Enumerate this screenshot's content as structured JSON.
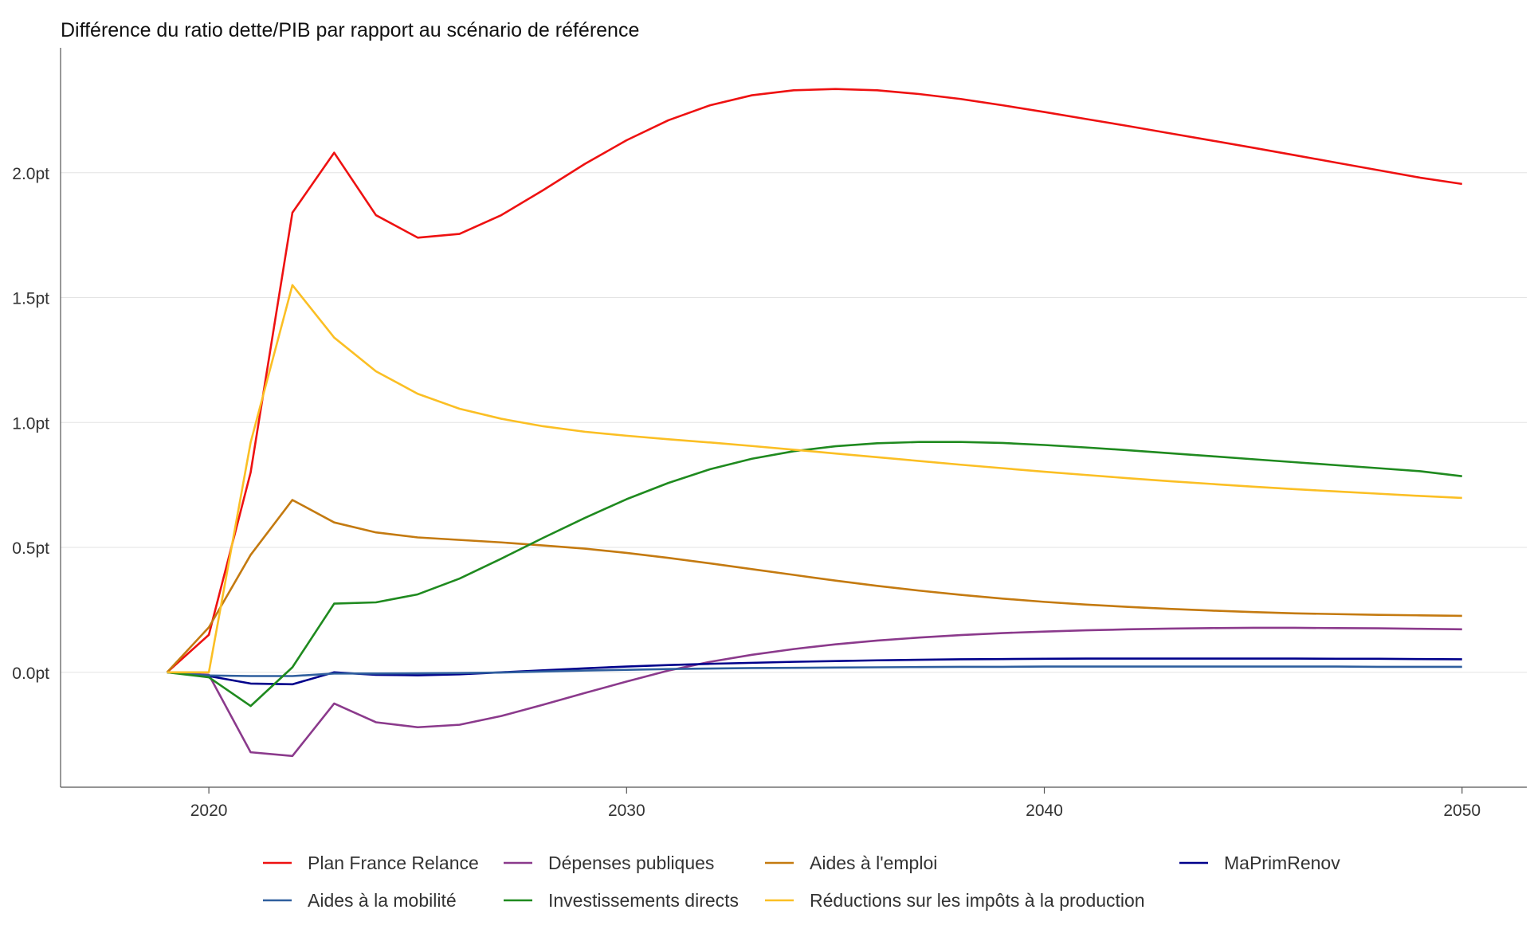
{
  "chart_data": {
    "type": "line",
    "title": "Différence du ratio dette/PIB par rapport au scénario de référence",
    "xlabel": "",
    "ylabel": "",
    "xlim": [
      2016.45,
      2051.55
    ],
    "ylim": [
      -0.46,
      2.5
    ],
    "x_ticks": [
      2020,
      2030,
      2040,
      2050
    ],
    "x_tick_labels": [
      "2020",
      "2030",
      "2040",
      "2050"
    ],
    "y_ticks": [
      0,
      0.5,
      1.0,
      1.5,
      2.0
    ],
    "y_tick_labels": [
      "0.0pt",
      "0.5pt",
      "1.0pt",
      "1.5pt",
      "2.0pt"
    ],
    "grid": "horizontal",
    "legend_position": "bottom",
    "x": [
      2019,
      2020,
      2021,
      2022,
      2023,
      2024,
      2025,
      2026,
      2027,
      2028,
      2029,
      2030,
      2031,
      2032,
      2033,
      2034,
      2035,
      2036,
      2037,
      2038,
      2039,
      2040,
      2041,
      2042,
      2043,
      2044,
      2045,
      2046,
      2047,
      2048,
      2049,
      2050
    ],
    "series": [
      {
        "name": "Plan France Relance",
        "color": "#ee1111",
        "values": [
          0.0,
          0.15,
          0.8,
          1.84,
          2.08,
          1.83,
          1.74,
          1.755,
          1.83,
          1.93,
          2.035,
          2.13,
          2.21,
          2.27,
          2.31,
          2.33,
          2.335,
          2.33,
          2.315,
          2.295,
          2.27,
          2.243,
          2.215,
          2.187,
          2.158,
          2.129,
          2.1,
          2.07,
          2.04,
          2.01,
          1.98,
          1.955
        ]
      },
      {
        "name": "Dépenses publiques",
        "color": "#8b3a8c",
        "values": [
          0.0,
          -0.01,
          -0.32,
          -0.335,
          -0.125,
          -0.2,
          -0.22,
          -0.21,
          -0.175,
          -0.13,
          -0.083,
          -0.037,
          0.007,
          0.042,
          0.07,
          0.093,
          0.112,
          0.127,
          0.139,
          0.149,
          0.157,
          0.163,
          0.168,
          0.172,
          0.175,
          0.177,
          0.178,
          0.178,
          0.177,
          0.176,
          0.174,
          0.172
        ]
      },
      {
        "name": "Aides à l'emploi",
        "color": "#c47a10",
        "values": [
          0.0,
          0.18,
          0.47,
          0.69,
          0.6,
          0.56,
          0.54,
          0.53,
          0.52,
          0.508,
          0.495,
          0.478,
          0.458,
          0.436,
          0.413,
          0.39,
          0.367,
          0.346,
          0.327,
          0.31,
          0.295,
          0.282,
          0.271,
          0.262,
          0.254,
          0.247,
          0.241,
          0.236,
          0.233,
          0.23,
          0.228,
          0.226
        ]
      },
      {
        "name": "MaPrimRenov",
        "color": "#00008b",
        "values": [
          0.0,
          -0.015,
          -0.045,
          -0.048,
          0.0,
          -0.01,
          -0.012,
          -0.008,
          0.0,
          0.008,
          0.016,
          0.023,
          0.029,
          0.034,
          0.038,
          0.042,
          0.045,
          0.048,
          0.05,
          0.052,
          0.053,
          0.054,
          0.055,
          0.055,
          0.055,
          0.055,
          0.055,
          0.055,
          0.054,
          0.054,
          0.053,
          0.052
        ]
      },
      {
        "name": "Aides à la mobilité",
        "color": "#2f5f9e",
        "values": [
          0.0,
          -0.013,
          -0.015,
          -0.015,
          -0.005,
          -0.005,
          -0.004,
          -0.003,
          -0.001,
          0.003,
          0.007,
          0.01,
          0.013,
          0.015,
          0.017,
          0.018,
          0.019,
          0.02,
          0.021,
          0.022,
          0.022,
          0.023,
          0.023,
          0.023,
          0.023,
          0.023,
          0.023,
          0.023,
          0.023,
          0.022,
          0.022,
          0.022
        ]
      },
      {
        "name": "Investissements directs",
        "color": "#1f8a1f",
        "values": [
          0.0,
          -0.02,
          -0.135,
          0.02,
          0.275,
          0.28,
          0.312,
          0.375,
          0.455,
          0.538,
          0.618,
          0.693,
          0.758,
          0.813,
          0.855,
          0.885,
          0.905,
          0.917,
          0.922,
          0.922,
          0.918,
          0.91,
          0.9,
          0.889,
          0.877,
          0.865,
          0.853,
          0.841,
          0.829,
          0.817,
          0.805,
          0.785
        ]
      },
      {
        "name": "Réductions sur les impôts à la production",
        "color": "#fbbf24",
        "values": [
          0.0,
          0.0,
          0.92,
          1.55,
          1.34,
          1.205,
          1.115,
          1.055,
          1.015,
          0.985,
          0.963,
          0.947,
          0.933,
          0.92,
          0.906,
          0.891,
          0.876,
          0.861,
          0.846,
          0.831,
          0.817,
          0.803,
          0.79,
          0.777,
          0.765,
          0.754,
          0.743,
          0.733,
          0.724,
          0.715,
          0.706,
          0.698
        ]
      }
    ],
    "legend": [
      "Plan France Relance",
      "Dépenses publiques",
      "Aides à l'emploi",
      "MaPrimRenov",
      "Aides à la mobilité",
      "Investissements directs",
      "Réductions sur les impôts à la production"
    ]
  }
}
